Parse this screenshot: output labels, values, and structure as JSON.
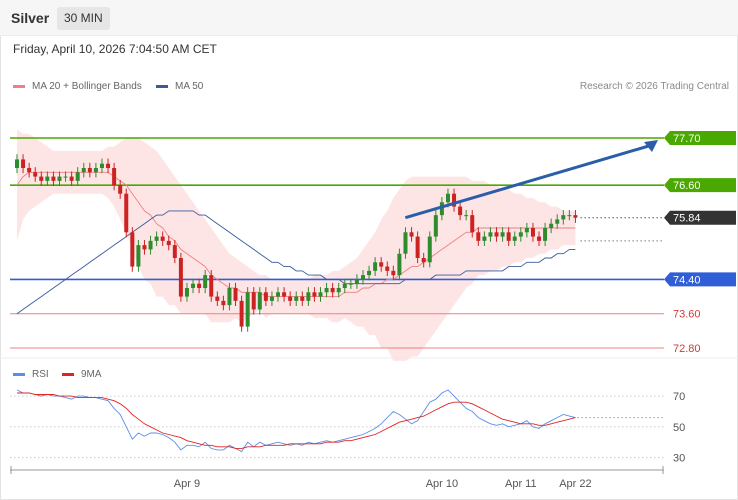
{
  "header": {
    "title": "Silver",
    "timeframe": "30 MIN"
  },
  "datetime": "Friday, April 10, 2026 7:04:50 AM CET",
  "legend": {
    "ma20": "MA 20 + Bollinger Bands",
    "ma50": "MA 50",
    "ma20_color": "#f08080",
    "ma50_color": "#3a5a9a",
    "band_fill": "#fde0e0"
  },
  "credit": "Research © 2026 Trading Central",
  "rsi_legend": {
    "rsi": "RSI",
    "ma": "9MA",
    "rsi_color": "#5b8ee6",
    "ma_color": "#e02424"
  },
  "colors": {
    "bull": "#2e8b2e",
    "bear": "#cc2222",
    "green_level": "#4aa800",
    "blue_level": "#2f5ed6",
    "red_level": "#f08080",
    "current": "#333333",
    "arrow": "#2b5ea8"
  },
  "chart_data": {
    "type": "candlestick",
    "price_axis": {
      "min": 72.6,
      "max": 77.9
    },
    "current_price": "75.84",
    "levels": [
      {
        "label": "77.70",
        "value": 77.7,
        "style": "resistance"
      },
      {
        "label": "76.60",
        "value": 76.6,
        "style": "resistance"
      },
      {
        "label": "74.40",
        "value": 74.4,
        "style": "pivot"
      },
      {
        "label": "73.60",
        "value": 73.6,
        "style": "support"
      },
      {
        "label": "72.80",
        "value": 72.8,
        "style": "support"
      }
    ],
    "forecast_arrow": {
      "from_index": 62,
      "from_price": 75.84,
      "to_price": 77.7
    },
    "close": [
      77.2,
      77.0,
      76.9,
      76.8,
      76.7,
      76.8,
      76.7,
      76.8,
      76.8,
      76.7,
      76.9,
      77.0,
      76.9,
      77.0,
      77.1,
      77.0,
      76.6,
      76.4,
      75.5,
      74.7,
      75.2,
      75.1,
      75.3,
      75.4,
      75.3,
      75.2,
      74.9,
      74.0,
      74.2,
      74.3,
      74.2,
      74.5,
      74.0,
      73.9,
      73.8,
      74.2,
      73.9,
      73.3,
      74.1,
      73.7,
      74.1,
      73.9,
      74.0,
      74.1,
      74.0,
      73.9,
      74.0,
      73.9,
      74.1,
      74.0,
      74.1,
      74.2,
      74.1,
      74.2,
      74.3,
      74.3,
      74.4,
      74.5,
      74.6,
      74.8,
      74.7,
      74.6,
      74.5,
      75.0,
      75.5,
      75.4,
      74.9,
      74.8,
      75.4,
      75.9,
      76.2,
      76.4,
      76.1,
      75.9,
      75.9,
      75.5,
      75.3,
      75.4,
      75.5,
      75.4,
      75.5,
      75.3,
      75.4,
      75.5,
      75.6,
      75.4,
      75.3,
      75.6,
      75.7,
      75.8,
      75.9,
      75.9,
      75.84
    ],
    "open": [
      77.0,
      77.2,
      77.0,
      76.9,
      76.8,
      76.7,
      76.8,
      76.7,
      76.8,
      76.8,
      76.7,
      76.9,
      77.0,
      76.9,
      77.0,
      77.1,
      77.0,
      76.6,
      76.4,
      75.5,
      74.7,
      75.2,
      75.1,
      75.3,
      75.4,
      75.3,
      75.2,
      74.9,
      74.0,
      74.2,
      74.3,
      74.2,
      74.5,
      74.0,
      73.9,
      73.8,
      74.2,
      73.9,
      73.3,
      74.1,
      73.7,
      74.1,
      73.9,
      74.0,
      74.1,
      74.0,
      73.9,
      74.0,
      73.9,
      74.1,
      74.0,
      74.1,
      74.2,
      74.1,
      74.2,
      74.3,
      74.3,
      74.4,
      74.5,
      74.6,
      74.8,
      74.7,
      74.6,
      74.5,
      75.0,
      75.5,
      75.4,
      74.9,
      74.8,
      75.4,
      75.9,
      76.2,
      76.4,
      76.1,
      75.9,
      75.9,
      75.5,
      75.3,
      75.4,
      75.5,
      75.4,
      75.5,
      75.3,
      75.4,
      75.5,
      75.6,
      75.4,
      75.3,
      75.6,
      75.7,
      75.8,
      75.9,
      75.9
    ],
    "ma20": [
      76.6,
      76.8,
      76.9,
      76.9,
      76.9,
      76.9,
      76.9,
      76.9,
      76.9,
      76.9,
      76.9,
      76.9,
      76.9,
      76.9,
      76.9,
      76.9,
      76.8,
      76.7,
      76.6,
      76.4,
      76.2,
      76.0,
      75.9,
      75.7,
      75.6,
      75.4,
      75.3,
      75.1,
      75.0,
      74.9,
      74.8,
      74.7,
      74.5,
      74.4,
      74.3,
      74.2,
      74.2,
      74.1,
      74.1,
      74.1,
      74.1,
      74.0,
      74.0,
      74.0,
      74.0,
      74.0,
      74.0,
      74.0,
      74.0,
      74.0,
      74.0,
      74.0,
      74.0,
      74.0,
      74.1,
      74.1,
      74.1,
      74.2,
      74.2,
      74.3,
      74.3,
      74.4,
      74.4,
      74.5,
      74.6,
      74.7,
      74.7,
      74.8,
      74.9,
      75.0,
      75.1,
      75.2,
      75.3,
      75.4,
      75.5,
      75.5,
      75.6,
      75.6,
      75.6,
      75.6,
      75.6,
      75.6,
      75.6,
      75.6,
      75.6,
      75.6,
      75.6,
      75.6,
      75.6,
      75.6,
      75.6,
      75.6,
      75.6
    ],
    "ma50": [
      73.6,
      73.7,
      73.8,
      73.9,
      74.0,
      74.1,
      74.2,
      74.3,
      74.4,
      74.5,
      74.6,
      74.7,
      74.8,
      74.9,
      75.0,
      75.1,
      75.2,
      75.3,
      75.4,
      75.5,
      75.6,
      75.7,
      75.8,
      75.9,
      75.9,
      76.0,
      76.0,
      76.0,
      76.0,
      76.0,
      75.9,
      75.9,
      75.8,
      75.7,
      75.6,
      75.5,
      75.4,
      75.3,
      75.2,
      75.1,
      75.0,
      74.9,
      74.8,
      74.8,
      74.7,
      74.7,
      74.6,
      74.6,
      74.5,
      74.5,
      74.5,
      74.4,
      74.4,
      74.4,
      74.3,
      74.3,
      74.3,
      74.3,
      74.3,
      74.3,
      74.3,
      74.3,
      74.3,
      74.3,
      74.4,
      74.4,
      74.4,
      74.4,
      74.4,
      74.5,
      74.5,
      74.5,
      74.5,
      74.5,
      74.6,
      74.6,
      74.6,
      74.6,
      74.6,
      74.6,
      74.6,
      74.7,
      74.7,
      74.7,
      74.8,
      74.8,
      74.8,
      74.9,
      74.9,
      75.0,
      75.0,
      75.1,
      75.1
    ],
    "bb_upper": [
      77.9,
      77.8,
      77.8,
      77.7,
      77.6,
      77.5,
      77.4,
      77.4,
      77.4,
      77.4,
      77.4,
      77.4,
      77.4,
      77.4,
      77.4,
      77.5,
      77.5,
      77.6,
      77.7,
      77.7,
      77.7,
      77.6,
      77.5,
      77.4,
      77.2,
      77.0,
      76.8,
      76.6,
      76.4,
      76.2,
      76.0,
      75.8,
      75.6,
      75.4,
      75.2,
      75.0,
      74.9,
      74.8,
      74.7,
      74.6,
      74.5,
      74.5,
      74.4,
      74.4,
      74.4,
      74.4,
      74.4,
      74.4,
      74.4,
      74.5,
      74.5,
      74.5,
      74.6,
      74.6,
      74.7,
      74.8,
      74.9,
      75.1,
      75.3,
      75.5,
      75.8,
      76.0,
      76.3,
      76.5,
      76.7,
      76.8,
      76.8,
      76.8,
      76.8,
      76.8,
      76.8,
      76.8,
      76.8,
      76.8,
      76.8,
      76.7,
      76.7,
      76.7,
      76.6,
      76.6,
      76.5,
      76.5,
      76.4,
      76.4,
      76.3,
      76.3,
      76.2,
      76.2,
      76.1,
      76.1,
      76.0,
      76.0,
      76.0
    ],
    "bb_lower": [
      75.3,
      75.8,
      76.0,
      76.1,
      76.2,
      76.3,
      76.4,
      76.4,
      76.4,
      76.4,
      76.4,
      76.4,
      76.4,
      76.4,
      76.4,
      76.3,
      76.1,
      75.8,
      75.5,
      75.1,
      74.7,
      74.4,
      74.3,
      74.0,
      74.0,
      73.8,
      73.8,
      73.6,
      73.6,
      73.6,
      73.6,
      73.6,
      73.4,
      73.4,
      73.4,
      73.4,
      73.5,
      73.4,
      73.5,
      73.6,
      73.7,
      73.5,
      73.6,
      73.6,
      73.6,
      73.6,
      73.6,
      73.6,
      73.6,
      73.5,
      73.5,
      73.5,
      73.4,
      73.4,
      73.5,
      73.4,
      73.3,
      73.3,
      73.1,
      73.1,
      72.8,
      72.8,
      72.5,
      72.5,
      72.5,
      72.6,
      72.6,
      72.8,
      73.0,
      73.2,
      73.4,
      73.6,
      73.8,
      74.0,
      74.2,
      74.3,
      74.5,
      74.5,
      74.6,
      74.6,
      74.7,
      74.7,
      74.8,
      74.8,
      74.9,
      74.9,
      75.0,
      75.0,
      75.1,
      75.1,
      75.2,
      75.2,
      75.2
    ],
    "rsi": {
      "ticks": [
        "70",
        "50",
        "30"
      ],
      "tick_values": [
        70,
        50,
        30
      ],
      "range": [
        20,
        85
      ],
      "rsi": [
        74,
        72,
        72,
        71,
        70,
        71,
        70,
        70,
        69,
        68,
        70,
        70,
        69,
        69,
        68,
        67,
        62,
        58,
        50,
        42,
        46,
        44,
        46,
        46,
        45,
        43,
        40,
        35,
        38,
        38,
        37,
        40,
        36,
        35,
        35,
        38,
        36,
        34,
        40,
        37,
        40,
        38,
        39,
        40,
        39,
        38,
        39,
        38,
        40,
        39,
        40,
        41,
        40,
        41,
        42,
        43,
        44,
        45,
        47,
        49,
        52,
        56,
        60,
        58,
        55,
        52,
        54,
        60,
        66,
        68,
        72,
        74,
        70,
        66,
        62,
        60,
        56,
        54,
        52,
        51,
        52,
        50,
        51,
        52,
        54,
        50,
        49,
        52,
        54,
        56,
        58,
        57,
        56
      ],
      "ma9": [
        72,
        72,
        72,
        71,
        71,
        71,
        71,
        70,
        70,
        70,
        69,
        69,
        69,
        69,
        69,
        68,
        67,
        65,
        62,
        58,
        55,
        52,
        50,
        48,
        46,
        45,
        44,
        43,
        41,
        40,
        39,
        38,
        38,
        37,
        37,
        37,
        36,
        36,
        37,
        37,
        37,
        38,
        38,
        38,
        38,
        39,
        39,
        39,
        39,
        39,
        39,
        40,
        40,
        40,
        41,
        41,
        42,
        43,
        44,
        45,
        47,
        49,
        51,
        53,
        54,
        55,
        56,
        57,
        59,
        61,
        63,
        65,
        66,
        66,
        66,
        65,
        63,
        61,
        59,
        57,
        55,
        54,
        53,
        52,
        52,
        52,
        51,
        51,
        52,
        53,
        54,
        55,
        56
      ]
    },
    "x_ticks": [
      {
        "label": "Apr 9",
        "index": 28
      },
      {
        "label": "Apr 10",
        "index": 70
      },
      {
        "label": "Apr 11",
        "index": 83
      },
      {
        "label": "Apr 22",
        "index": 92
      }
    ]
  }
}
